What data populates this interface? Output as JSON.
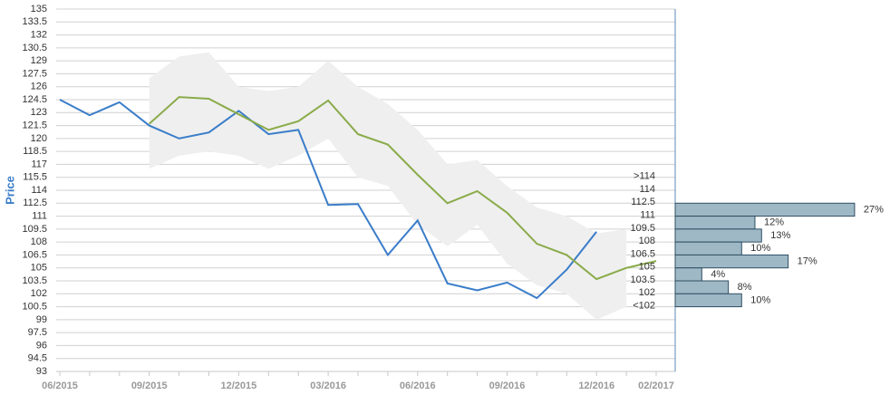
{
  "chart_data": {
    "type": "line",
    "y_label": "Price",
    "categories": [
      "06/2015",
      null,
      null,
      "09/2015",
      null,
      null,
      "12/2015",
      null,
      null,
      "03/2016",
      null,
      null,
      "06/2016",
      null,
      null,
      "09/2016",
      null,
      null,
      "12/2016",
      null,
      "02/2017"
    ],
    "series": [
      {
        "color": "#3a7dc9",
        "values": [
          124.5,
          122.7,
          124.2,
          121.5,
          120,
          120.7,
          123.2,
          120.5,
          121,
          112.3,
          112.4,
          106.5,
          110.5,
          103.2,
          102.4,
          103.3,
          101.5,
          104.8,
          109.2,
          null,
          null
        ]
      },
      {
        "color": "#8aab4a",
        "values": [
          null,
          null,
          null,
          121.7,
          124.8,
          124.6,
          122.8,
          121,
          122,
          124.4,
          120.5,
          119.3,
          115.8,
          112.5,
          113.9,
          111.4,
          107.8,
          106.5,
          103.7,
          105,
          105.8
        ]
      }
    ],
    "band": {
      "color": "#efefef",
      "upper": [
        null,
        null,
        null,
        127,
        129.5,
        130,
        126,
        125.5,
        126,
        129,
        126,
        124,
        121,
        117,
        117.5,
        114.5,
        112,
        111,
        109,
        109.5,
        null
      ],
      "lower": [
        null,
        null,
        null,
        116.5,
        118,
        118.5,
        118,
        116.5,
        118,
        120,
        115.5,
        114.5,
        110,
        107.5,
        110,
        105.5,
        103,
        102,
        99,
        100.5,
        null
      ]
    },
    "histogram": {
      "color": "#9fb8c6",
      "categories": [
        ">114",
        "114",
        "112.5",
        "111",
        "109.5",
        "108",
        "106.5",
        "105",
        "103.5",
        "102",
        "<102"
      ],
      "bins": [
        115.5,
        114,
        112.5,
        111,
        109.5,
        108,
        106.5,
        105,
        103.5,
        102,
        100.5,
        99
      ],
      "values": [
        null,
        null,
        27,
        12,
        13,
        10,
        17,
        4,
        8,
        10,
        null
      ],
      "value_labels": [
        null,
        null,
        "27%",
        "12%",
        "13%",
        "10%",
        "17%",
        "4%",
        "8%",
        "10%",
        null
      ]
    },
    "ylim": [
      93,
      135
    ],
    "yticks": [
      93,
      94.5,
      96,
      97.5,
      99,
      100.5,
      102,
      103.5,
      105,
      106.5,
      108,
      109.5,
      111,
      112.5,
      114,
      115.5,
      117,
      118.5,
      120,
      121.5,
      123,
      124.5,
      126,
      127.5,
      129,
      130.5,
      132,
      133.5,
      135
    ],
    "grid": true
  }
}
